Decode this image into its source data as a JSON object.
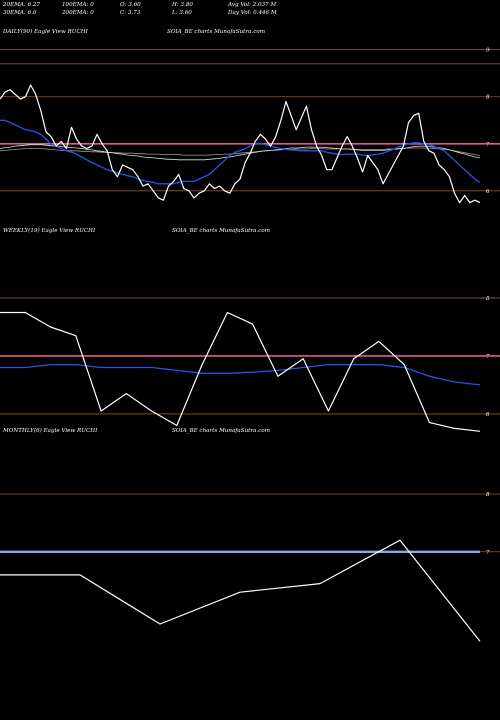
{
  "stats": {
    "row1": [
      "20EMA: 6.27",
      "100EMA: 0",
      "O: 3.60",
      "H: 3.80",
      "Avg Vol: 2.037  M"
    ],
    "row2": [
      "30EMA: 6.6",
      "200EMA: 0",
      "C: 3.73",
      "L: 3.60",
      "Day Vol: 0.446  M"
    ]
  },
  "chart_data": [
    {
      "type": "line",
      "label": "DAILY(90) Eagle   View  RUCHI",
      "label2": "SOIA_BE charts MunafaSutra.com",
      "ylim": [
        5.55,
        9.1
      ],
      "yticks": [
        {
          "v": 9,
          "label": "9"
        },
        {
          "v": 8,
          "label": "8"
        },
        {
          "v": 7,
          "label": "7"
        },
        {
          "v": 6,
          "label": "6"
        }
      ],
      "price": [
        7.95,
        8.1,
        8.15,
        8.05,
        7.95,
        8.0,
        8.25,
        8.05,
        7.7,
        7.25,
        7.15,
        6.95,
        7.05,
        6.9,
        7.35,
        7.1,
        6.95,
        6.9,
        6.95,
        7.2,
        7.0,
        6.85,
        6.45,
        6.3,
        6.55,
        6.5,
        6.45,
        6.3,
        6.1,
        6.15,
        6.0,
        5.85,
        5.8,
        6.1,
        6.2,
        6.35,
        6.05,
        6.0,
        5.85,
        5.95,
        6.0,
        6.15,
        6.05,
        6.1,
        6.0,
        5.95,
        6.15,
        6.25,
        6.6,
        6.8,
        7.05,
        7.2,
        7.1,
        6.95,
        7.15,
        7.5,
        7.9,
        7.6,
        7.3,
        7.55,
        7.8,
        7.3,
        6.95,
        6.75,
        6.45,
        6.45,
        6.7,
        6.95,
        7.15,
        6.95,
        6.7,
        6.4,
        6.75,
        6.6,
        6.45,
        6.15,
        6.35,
        6.55,
        6.75,
        6.95,
        7.45,
        7.6,
        7.65,
        7.05,
        6.85,
        6.8,
        6.55,
        6.45,
        6.3,
        5.95,
        5.75,
        5.9,
        5.75,
        5.8,
        5.75
      ],
      "ema_blue": [
        7.5,
        7.5,
        7.45,
        7.4,
        7.35,
        7.3,
        7.28,
        7.25,
        7.2,
        7.1,
        7.0,
        6.95,
        6.9,
        6.85,
        6.82,
        6.78,
        6.72,
        6.66,
        6.6,
        6.55,
        6.5,
        6.45,
        6.42,
        6.38,
        6.35,
        6.32,
        6.3,
        6.25,
        6.22,
        6.2,
        6.18,
        6.15,
        6.15,
        6.15,
        6.15,
        6.18,
        6.2,
        6.2,
        6.2,
        6.25,
        6.3,
        6.35,
        6.45,
        6.55,
        6.65,
        6.75,
        6.82,
        6.85,
        6.9,
        6.95,
        7.0,
        7.0,
        6.98,
        6.95,
        6.92,
        6.9,
        6.88,
        6.87,
        6.86,
        6.85,
        6.85,
        6.85,
        6.85,
        6.85,
        6.82,
        6.8,
        6.78,
        6.77,
        6.78,
        6.78,
        6.78,
        6.76,
        6.75,
        6.76,
        6.78,
        6.8,
        6.84,
        6.88,
        6.93,
        6.97,
        7.0,
        7.02,
        7.02,
        7.0,
        6.98,
        6.95,
        6.9,
        6.85,
        6.75,
        6.65,
        6.55,
        6.45,
        6.35,
        6.25,
        6.18
      ],
      "ema_gray": [
        6.85,
        6.86,
        6.87,
        6.88,
        6.89,
        6.9,
        6.9,
        6.9,
        6.9,
        6.89,
        6.88,
        6.87,
        6.86,
        6.86,
        6.85,
        6.85,
        6.84,
        6.84,
        6.83,
        6.83,
        6.82,
        6.82,
        6.81,
        6.81,
        6.8,
        6.8,
        6.8,
        6.79,
        6.79,
        6.78,
        6.78,
        6.78,
        6.77,
        6.77,
        6.77,
        6.77,
        6.76,
        6.76,
        6.76,
        6.76,
        6.76,
        6.76,
        6.77,
        6.77,
        6.78,
        6.78,
        6.79,
        6.8,
        6.81,
        6.82,
        6.83,
        6.84,
        6.85,
        6.86,
        6.86,
        6.87,
        6.88,
        6.88,
        6.89,
        6.89,
        6.89,
        6.9,
        6.9,
        6.9,
        6.89,
        6.89,
        6.89,
        6.89,
        6.89,
        6.89,
        6.88,
        6.88,
        6.88,
        6.88,
        6.88,
        6.88,
        6.89,
        6.89,
        6.9,
        6.9,
        6.91,
        6.91,
        6.91,
        6.91,
        6.9,
        6.9,
        6.89,
        6.88,
        6.87,
        6.85,
        6.83,
        6.81,
        6.79,
        6.77,
        6.75
      ],
      "ema_white": [
        6.9,
        6.92,
        6.93,
        6.95,
        6.96,
        6.97,
        6.98,
        6.98,
        6.98,
        6.97,
        6.96,
        6.95,
        6.94,
        6.93,
        6.92,
        6.91,
        6.9,
        6.88,
        6.87,
        6.85,
        6.84,
        6.82,
        6.81,
        6.79,
        6.78,
        6.76,
        6.75,
        6.74,
        6.72,
        6.71,
        6.7,
        6.69,
        6.68,
        6.67,
        6.67,
        6.66,
        6.66,
        6.66,
        6.66,
        6.66,
        6.66,
        6.67,
        6.68,
        6.69,
        6.71,
        6.72,
        6.74,
        6.76,
        6.78,
        6.8,
        6.82,
        6.84,
        6.85,
        6.86,
        6.87,
        6.88,
        6.9,
        6.91,
        6.91,
        6.92,
        6.93,
        6.93,
        6.93,
        6.93,
        6.92,
        6.91,
        6.9,
        6.89,
        6.89,
        6.88,
        6.87,
        6.86,
        6.86,
        6.86,
        6.86,
        6.86,
        6.87,
        6.88,
        6.89,
        6.9,
        6.92,
        6.94,
        6.95,
        6.95,
        6.94,
        6.93,
        6.92,
        6.9,
        6.87,
        6.84,
        6.81,
        6.78,
        6.75,
        6.72,
        6.7
      ],
      "pink_level": 7.0,
      "extra_lines": [
        8.7
      ]
    },
    {
      "type": "line",
      "label": "WEEKLY(19) Eagle   View  RUCHI",
      "label2": "SOIA_BE charts MunafaSutra.com",
      "ylim": [
        5.55,
        9.0
      ],
      "yticks": [
        {
          "v": 8,
          "label": "8"
        },
        {
          "v": 7,
          "label": "7"
        },
        {
          "v": 6,
          "label": "6"
        }
      ],
      "price": [
        7.75,
        7.75,
        7.5,
        7.35,
        6.05,
        6.35,
        6.05,
        5.8,
        6.85,
        7.75,
        7.55,
        6.65,
        6.95,
        6.05,
        6.95,
        7.25,
        6.85,
        5.85,
        5.75,
        5.7
      ],
      "ema_blue": [
        6.8,
        6.8,
        6.85,
        6.85,
        6.8,
        6.8,
        6.8,
        6.75,
        6.7,
        6.7,
        6.72,
        6.75,
        6.8,
        6.85,
        6.85,
        6.85,
        6.8,
        6.65,
        6.55,
        6.5
      ],
      "pink_level": 7.0,
      "extra_lines": [
        8.0
      ]
    },
    {
      "type": "line",
      "label": "MONTHLY(6) Eagle   View  RUCHI",
      "label2": "SOIA_BE charts MunafaSutra.com",
      "ylim": [
        5.3,
        8.9
      ],
      "yticks": [
        {
          "v": 8,
          "label": "8"
        },
        {
          "v": 7,
          "label": "7"
        }
      ],
      "price": [
        6.6,
        6.6,
        5.75,
        6.3,
        6.45,
        7.2,
        5.45
      ],
      "blue_level": 7.0
    }
  ]
}
